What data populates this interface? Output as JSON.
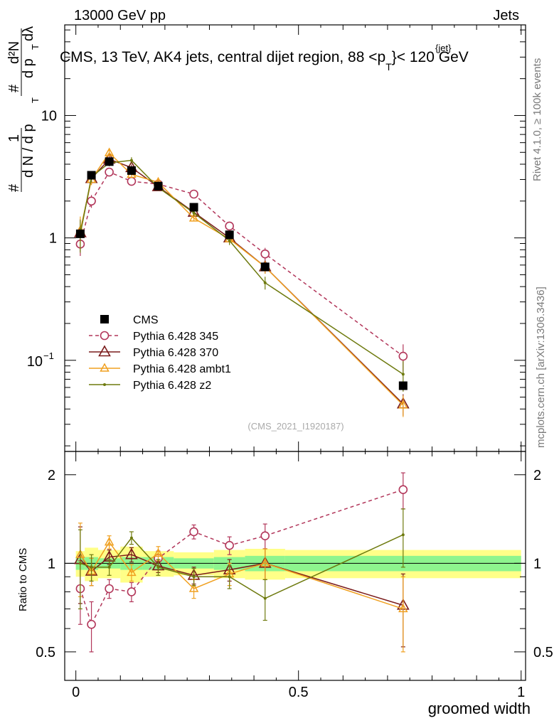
{
  "header": {
    "left": "13000 GeV pp",
    "right": "Jets"
  },
  "side_labels": {
    "rivet": "Rivet 4.1.0, ≥ 100k events",
    "mcplots": "mcplots.cern.ch [arXiv:1306.3436]"
  },
  "chart_data": {
    "type": "line",
    "title": "CMS, 13 TeV, AK4 jets, central dijet region, 88 <p_T^{jet}< 120 GeV",
    "title_parts": {
      "main": "CMS, 13 TeV, AK4 jets, central dijet region, 88 <p",
      "sup": "{jet}",
      "sub": "T",
      "tail": "}< 120 GeV"
    },
    "watermark": "(CMS_2021_I1920187)",
    "xlabel": "groomed width",
    "ylabel_main": "1/dN dp_T  d^2N/dp_T dλ",
    "ylabel_parts": {
      "one": "1",
      "den": "d N / d p",
      "num": "d²N",
      "den2": "d p",
      "lam": "dλ",
      "T": "T",
      "hash": "#"
    },
    "ylabel_ratio": "Ratio to CMS",
    "xlim": [
      -0.025,
      1.01
    ],
    "ylim_main": [
      0.018,
      55
    ],
    "ylim_ratio": [
      0.4,
      2.4
    ],
    "y_scale": "log",
    "x_ticks": [
      "0",
      "0.5",
      "1"
    ],
    "x_tick_values": [
      0,
      0.5,
      1
    ],
    "y_ticks_main": [
      "10",
      "1",
      "10^-1"
    ],
    "y_tick_values_main": [
      10,
      1,
      0.1
    ],
    "y_ticks_ratio": [
      "2",
      "1",
      "0.5"
    ],
    "y_tick_values_ratio": [
      2,
      1,
      0.5
    ],
    "x": [
      0.01,
      0.035,
      0.075,
      0.125,
      0.185,
      0.265,
      0.345,
      0.425,
      0.735
    ],
    "bins": [
      [
        0.0,
        0.02
      ],
      [
        0.02,
        0.05
      ],
      [
        0.05,
        0.1
      ],
      [
        0.1,
        0.15
      ],
      [
        0.15,
        0.22
      ],
      [
        0.22,
        0.31
      ],
      [
        0.31,
        0.38
      ],
      [
        0.38,
        0.47
      ],
      [
        0.47,
        1.0
      ]
    ],
    "data": {
      "name": "CMS",
      "values": [
        1.08,
        3.25,
        4.2,
        3.55,
        2.65,
        1.78,
        1.06,
        0.58,
        0.062
      ],
      "stat_band": [
        0.05,
        0.05,
        0.04,
        0.05,
        0.05,
        0.04,
        0.05,
        0.06,
        0.06
      ],
      "tot_band": [
        0.1,
        0.13,
        0.11,
        0.14,
        0.1,
        0.09,
        0.11,
        0.12,
        0.11
      ]
    },
    "series": [
      {
        "name": "Pythia 6.428 345",
        "color": "#b2365a",
        "dashed": true,
        "marker": "circle",
        "values": [
          0.89,
          2.0,
          3.45,
          2.9,
          2.75,
          2.28,
          1.25,
          0.74,
          0.108
        ],
        "ratio": [
          0.82,
          0.62,
          0.82,
          0.8,
          1.04,
          1.28,
          1.15,
          1.24,
          1.78
        ],
        "ratio_err": [
          0.2,
          0.12,
          0.06,
          0.06,
          0.06,
          0.07,
          0.08,
          0.12,
          0.25
        ]
      },
      {
        "name": "Pythia 6.428 370",
        "color": "#7a1b1b",
        "dashed": false,
        "marker": "triangle",
        "values": [
          1.1,
          3.05,
          4.4,
          3.75,
          2.62,
          1.62,
          1.0,
          0.58,
          0.044
        ],
        "ratio": [
          1.03,
          0.94,
          1.05,
          1.07,
          0.98,
          0.91,
          0.95,
          1.0,
          0.72
        ],
        "ratio_err": [
          0.3,
          0.1,
          0.06,
          0.06,
          0.05,
          0.06,
          0.08,
          0.12,
          0.2
        ]
      },
      {
        "name": "Pythia 6.428 ambt1",
        "color": "#f0a020",
        "dashed": false,
        "marker": "triangle-small",
        "values": [
          1.15,
          3.0,
          4.95,
          3.3,
          2.85,
          1.45,
          0.98,
          0.58,
          0.043
        ],
        "ratio": [
          1.07,
          0.94,
          1.18,
          0.93,
          1.08,
          0.82,
          0.92,
          1.0,
          0.7
        ],
        "ratio_err": [
          0.3,
          0.1,
          0.06,
          0.06,
          0.06,
          0.06,
          0.08,
          0.12,
          0.2
        ]
      },
      {
        "name": "Pythia 6.428 z2",
        "color": "#6e7a0e",
        "dashed": false,
        "marker": "dot",
        "values": [
          1.08,
          3.15,
          4.1,
          4.3,
          2.58,
          1.6,
          0.95,
          0.43,
          0.077
        ],
        "ratio": [
          1.0,
          0.97,
          0.97,
          1.22,
          0.97,
          0.9,
          0.9,
          0.76,
          1.25
        ],
        "ratio_err": [
          0.3,
          0.1,
          0.06,
          0.06,
          0.06,
          0.06,
          0.08,
          0.12,
          0.28
        ]
      }
    ],
    "legend": [
      "CMS",
      "Pythia 6.428 345",
      "Pythia 6.428 370",
      "Pythia 6.428 ambt1",
      "Pythia 6.428 z2"
    ],
    "legend_position": "lower-left"
  }
}
